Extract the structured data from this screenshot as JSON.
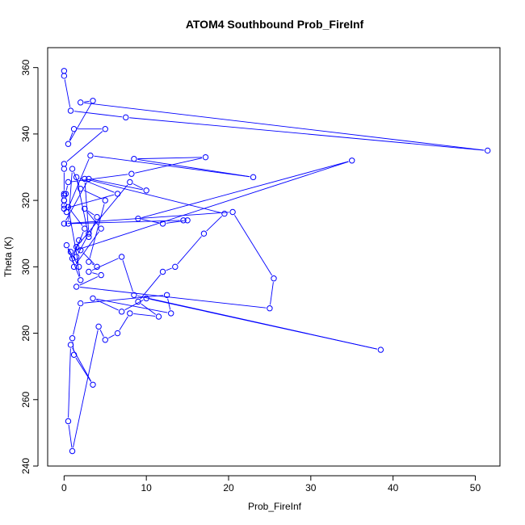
{
  "chart_data": {
    "type": "scatter",
    "title": "ATOM4 Southbound Prob_FireInf",
    "xlabel": "Prob_FireInf",
    "ylabel": "Theta (K)",
    "xlim": [
      -2,
      53
    ],
    "ylim": [
      240,
      366
    ],
    "xticks": [
      0,
      10,
      20,
      30,
      40,
      50
    ],
    "yticks": [
      240,
      260,
      280,
      300,
      320,
      340,
      360
    ],
    "color": "#0000ff",
    "series": [
      {
        "style": "points-and-lines",
        "x": [
          0.0,
          0.0,
          0.8,
          7.5,
          51.5,
          2.0,
          3.5,
          0.5,
          1.2,
          5.0,
          0.0,
          0.0,
          0.0,
          0.0,
          0.0,
          0.3,
          3.2,
          23.0,
          8.5,
          17.2,
          8.2,
          0.5,
          0.2,
          0.0,
          0.0,
          0.0,
          6.5,
          1.5,
          3.0,
          4.0,
          2.5,
          4.5,
          1.2,
          0.8,
          35.0,
          9.0,
          12.0,
          15.0,
          14.5,
          0.5,
          1.0,
          2.0,
          5.0,
          3.0,
          4.0,
          2.0,
          1.5,
          8.0,
          10.0,
          3.0,
          0.0,
          20.5,
          25.5,
          25.0,
          1.5,
          4.5,
          3.0,
          7.0,
          8.5,
          38.5,
          10.0,
          7.0,
          3.5,
          13.0,
          12.5,
          2.0,
          1.0,
          1.2,
          3.5,
          0.8,
          0.5,
          1.0,
          4.2,
          5.0,
          6.5,
          8.0,
          11.5,
          9.0,
          12.0,
          13.5,
          17.0,
          19.5,
          2.5,
          3.0,
          1.5,
          2.0,
          0.3,
          1.8,
          0.5,
          2.5,
          1.0,
          1.8
        ],
        "y": [
          359.0,
          357.5,
          347.0,
          345.0,
          335.0,
          349.5,
          350.0,
          337.0,
          341.5,
          341.5,
          331.0,
          329.5,
          322.0,
          320.0,
          318.5,
          316.5,
          333.5,
          327.0,
          332.5,
          333.0,
          328.0,
          325.5,
          322.0,
          321.5,
          320.0,
          317.5,
          322.0,
          327.0,
          309.0,
          315.0,
          317.5,
          311.5,
          300.0,
          304.5,
          332.0,
          314.5,
          313.0,
          314.0,
          314.0,
          313.0,
          329.5,
          323.5,
          320.0,
          301.5,
          300.0,
          305.0,
          306.0,
          325.5,
          323.0,
          326.5,
          313.0,
          316.5,
          296.5,
          287.5,
          294.0,
          297.5,
          298.5,
          303.0,
          291.5,
          275.0,
          290.5,
          286.5,
          290.5,
          286.0,
          291.5,
          289.0,
          278.5,
          273.5,
          264.5,
          276.5,
          253.5,
          244.5,
          282.0,
          278.0,
          280.0,
          286.0,
          285.0,
          289.5,
          298.5,
          300.0,
          310.0,
          316.0,
          326.5,
          310.0,
          303.0,
          296.0,
          306.5,
          300.0,
          318.0,
          311.5,
          302.5,
          308.0
        ]
      }
    ]
  }
}
